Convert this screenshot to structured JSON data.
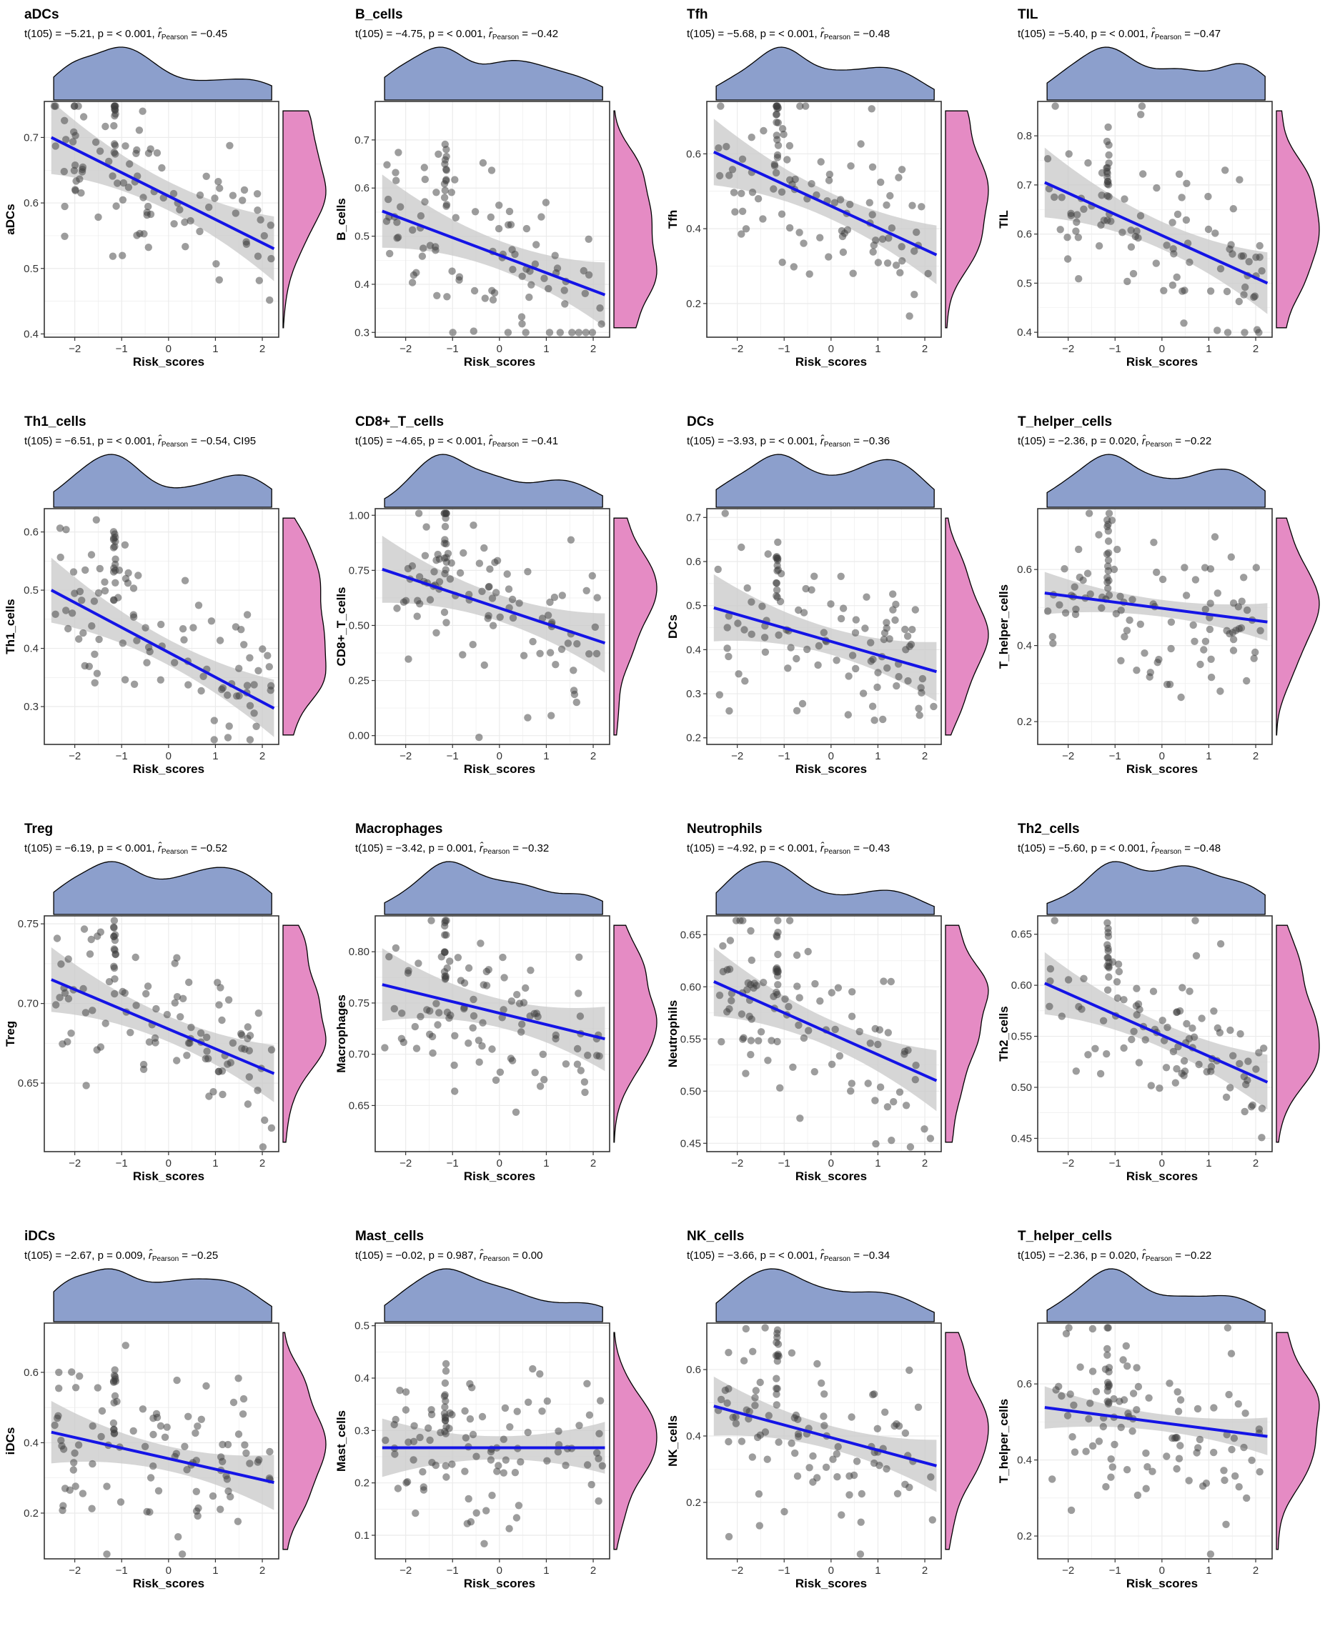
{
  "figure": {
    "columns": 4,
    "colors": {
      "top_density_fill": "#8c9fcc",
      "right_density_fill": "#e58bc4",
      "fit_line": "#1414e6",
      "confidence_band": "#c8c8c8",
      "point": "#3c3c3c",
      "grid": "#ebebeb"
    }
  },
  "chart_data": [
    {
      "type": "scatter",
      "title": "aDCs",
      "stat": {
        "t": "t(105) = −5.21, ",
        "p": "p = < 0.001, ",
        "r_label": "r̂",
        "r_sub": "Pearson",
        "r_val": " = −0.45",
        "extra": ""
      },
      "xlabel": "Risk_scores",
      "ylabel": "aDCs",
      "xlim": [
        -2.65,
        2.35
      ],
      "ylim": [
        0.395,
        0.755
      ],
      "xticks": [
        -2,
        -1,
        0,
        1,
        2
      ],
      "yticks": [
        0.4,
        0.5,
        0.6,
        0.7
      ],
      "fit": {
        "x": [
          -2.5,
          2.25
        ],
        "y": [
          0.7,
          0.53
        ]
      },
      "ci": 0.022,
      "seed": 11
    },
    {
      "type": "scatter",
      "title": "B_cells",
      "stat": {
        "t": "t(105) = −4.75, ",
        "p": "p = < 0.001, ",
        "r_label": "r̂",
        "r_sub": "Pearson",
        "r_val": " = −0.42",
        "extra": ""
      },
      "xlabel": "Risk_scores",
      "ylabel": "B_cells",
      "xlim": [
        -2.65,
        2.35
      ],
      "ylim": [
        0.29,
        0.78
      ],
      "xticks": [
        -2,
        -1,
        0,
        1,
        2
      ],
      "yticks": [
        0.3,
        0.4,
        0.5,
        0.6,
        0.7
      ],
      "fit": {
        "x": [
          -2.5,
          2.25
        ],
        "y": [
          0.552,
          0.378
        ]
      },
      "ci": 0.03,
      "seed": 23
    },
    {
      "type": "scatter",
      "title": "Tfh",
      "stat": {
        "t": "t(105) = −5.68, ",
        "p": "p = < 0.001, ",
        "r_label": "r̂",
        "r_sub": "Pearson",
        "r_val": " = −0.48",
        "extra": ""
      },
      "xlabel": "Risk_scores",
      "ylabel": "Tfh",
      "xlim": [
        -2.65,
        2.35
      ],
      "ylim": [
        0.11,
        0.74
      ],
      "xticks": [
        -2,
        -1,
        0,
        1,
        2
      ],
      "yticks": [
        0.2,
        0.4,
        0.6
      ],
      "fit": {
        "x": [
          -2.5,
          2.25
        ],
        "y": [
          0.605,
          0.33
        ]
      },
      "ci": 0.035,
      "seed": 37
    },
    {
      "type": "scatter",
      "title": "TIL",
      "stat": {
        "t": "t(105) = −5.40, ",
        "p": "p = < 0.001, ",
        "r_label": "r̂",
        "r_sub": "Pearson",
        "r_val": " = −0.47",
        "extra": ""
      },
      "xlabel": "Risk_scores",
      "ylabel": "TIL",
      "xlim": [
        -2.65,
        2.35
      ],
      "ylim": [
        0.39,
        0.87
      ],
      "xticks": [
        -2,
        -1,
        0,
        1,
        2
      ],
      "yticks": [
        0.4,
        0.5,
        0.6,
        0.7,
        0.8
      ],
      "fit": {
        "x": [
          -2.5,
          2.25
        ],
        "y": [
          0.705,
          0.5
        ]
      },
      "ci": 0.028,
      "seed": 41
    },
    {
      "type": "scatter",
      "title": "Th1_cells",
      "stat": {
        "t": "t(105) = −6.51, ",
        "p": "p = < 0.001, ",
        "r_label": "r̂",
        "r_sub": "Pearson",
        "r_val": " = −0.54, ",
        "extra": "CI95"
      },
      "xlabel": "Risk_scores",
      "ylabel": "Th1_cells",
      "xlim": [
        -2.65,
        2.35
      ],
      "ylim": [
        0.235,
        0.64
      ],
      "xticks": [
        -2,
        -1,
        0,
        1,
        2
      ],
      "yticks": [
        0.3,
        0.4,
        0.5,
        0.6
      ],
      "fit": {
        "x": [
          -2.5,
          2.25
        ],
        "y": [
          0.5,
          0.297
        ]
      },
      "ci": 0.022,
      "seed": 53
    },
    {
      "type": "scatter",
      "title": "CD8+_T_cells",
      "stat": {
        "t": "t(105) = −4.65, ",
        "p": "p = < 0.001, ",
        "r_label": "r̂",
        "r_sub": "Pearson",
        "r_val": " = −0.41",
        "extra": ""
      },
      "xlabel": "Risk_scores",
      "ylabel": "CD8+_T_cells",
      "xlim": [
        -2.65,
        2.35
      ],
      "ylim": [
        -0.04,
        1.03
      ],
      "xticks": [
        -2,
        -1,
        0,
        1,
        2
      ],
      "yticks": [
        0.0,
        0.25,
        0.5,
        0.75,
        1.0
      ],
      "fit": {
        "x": [
          -2.5,
          2.25
        ],
        "y": [
          0.755,
          0.42
        ]
      },
      "ci": 0.06,
      "seed": 61
    },
    {
      "type": "scatter",
      "title": "DCs",
      "stat": {
        "t": "t(105) = −3.93, ",
        "p": "p = < 0.001, ",
        "r_label": "r̂",
        "r_sub": "Pearson",
        "r_val": " = −0.36",
        "extra": ""
      },
      "xlabel": "Risk_scores",
      "ylabel": "DCs",
      "xlim": [
        -2.65,
        2.35
      ],
      "ylim": [
        0.185,
        0.72
      ],
      "xticks": [
        -2,
        -1,
        0,
        1,
        2
      ],
      "yticks": [
        0.2,
        0.3,
        0.4,
        0.5,
        0.6,
        0.7
      ],
      "fit": {
        "x": [
          -2.5,
          2.25
        ],
        "y": [
          0.495,
          0.35
        ]
      },
      "ci": 0.03,
      "seed": 71
    },
    {
      "type": "scatter",
      "title": "T_helper_cells",
      "stat": {
        "t": "t(105) = −2.36, ",
        "p": "p = 0.020, ",
        "r_label": "r̂",
        "r_sub": "Pearson",
        "r_val": " = −0.22",
        "extra": ""
      },
      "xlabel": "Risk_scores",
      "ylabel": "T_helper_cells",
      "xlim": [
        -2.65,
        2.35
      ],
      "ylim": [
        0.14,
        0.76
      ],
      "xticks": [
        -2,
        -1,
        0,
        1,
        2
      ],
      "yticks": [
        0.2,
        0.4,
        0.6
      ],
      "fit": {
        "x": [
          -2.5,
          2.25
        ],
        "y": [
          0.538,
          0.462
        ]
      },
      "ci": 0.022,
      "seed": 83
    },
    {
      "type": "scatter",
      "title": "Treg",
      "stat": {
        "t": "t(105) = −6.19, ",
        "p": "p = < 0.001, ",
        "r_label": "r̂",
        "r_sub": "Pearson",
        "r_val": " = −0.52",
        "extra": ""
      },
      "xlabel": "Risk_scores",
      "ylabel": "Treg",
      "xlim": [
        -2.65,
        2.35
      ],
      "ylim": [
        0.607,
        0.755
      ],
      "xticks": [
        -2,
        -1,
        0,
        1,
        2
      ],
      "yticks": [
        0.65,
        0.7,
        0.75
      ],
      "fit": {
        "x": [
          -2.5,
          2.25
        ],
        "y": [
          0.715,
          0.656
        ]
      },
      "ci": 0.008,
      "seed": 97
    },
    {
      "type": "scatter",
      "title": "Macrophages",
      "stat": {
        "t": "t(105) = −3.42, ",
        "p": "p = 0.001, ",
        "r_label": "r̂",
        "r_sub": "Pearson",
        "r_val": " = −0.32",
        "extra": ""
      },
      "xlabel": "Risk_scores",
      "ylabel": "Macrophages",
      "xlim": [
        -2.65,
        2.35
      ],
      "ylim": [
        0.605,
        0.835
      ],
      "xticks": [
        -2,
        -1,
        0,
        1,
        2
      ],
      "yticks": [
        0.65,
        0.7,
        0.75,
        0.8
      ],
      "fit": {
        "x": [
          -2.5,
          2.25
        ],
        "y": [
          0.768,
          0.715
        ]
      },
      "ci": 0.014,
      "seed": 101
    },
    {
      "type": "scatter",
      "title": "Neutrophils",
      "stat": {
        "t": "t(105) = −4.92, ",
        "p": "p = < 0.001, ",
        "r_label": "r̂",
        "r_sub": "Pearson",
        "r_val": " = −0.43",
        "extra": ""
      },
      "xlabel": "Risk_scores",
      "ylabel": "Neutrophils",
      "xlim": [
        -2.65,
        2.35
      ],
      "ylim": [
        0.442,
        0.668
      ],
      "xticks": [
        -2,
        -1,
        0,
        1,
        2
      ],
      "yticks": [
        0.45,
        0.5,
        0.55,
        0.6,
        0.65
      ],
      "fit": {
        "x": [
          -2.5,
          2.25
        ],
        "y": [
          0.605,
          0.51
        ]
      },
      "ci": 0.013,
      "seed": 113
    },
    {
      "type": "scatter",
      "title": "Th2_cells",
      "stat": {
        "t": "t(105) = −5.60, ",
        "p": "p = < 0.001, ",
        "r_label": "r̂",
        "r_sub": "Pearson",
        "r_val": " = −0.48",
        "extra": ""
      },
      "xlabel": "Risk_scores",
      "ylabel": "Th2_cells",
      "xlim": [
        -2.65,
        2.35
      ],
      "ylim": [
        0.437,
        0.668
      ],
      "xticks": [
        -2,
        -1,
        0,
        1,
        2
      ],
      "yticks": [
        0.45,
        0.5,
        0.55,
        0.6,
        0.65
      ],
      "fit": {
        "x": [
          -2.5,
          2.25
        ],
        "y": [
          0.602,
          0.505
        ]
      },
      "ci": 0.012,
      "seed": 127
    },
    {
      "type": "scatter",
      "title": "iDCs",
      "stat": {
        "t": "t(105) = −2.67, ",
        "p": "p = 0.009, ",
        "r_label": "r̂",
        "r_sub": "Pearson",
        "r_val": " = −0.25",
        "extra": ""
      },
      "xlabel": "Risk_scores",
      "ylabel": "iDCs",
      "xlim": [
        -2.65,
        2.35
      ],
      "ylim": [
        0.07,
        0.74
      ],
      "xticks": [
        -2,
        -1,
        0,
        1,
        2
      ],
      "yticks": [
        0.2,
        0.4,
        0.6
      ],
      "fit": {
        "x": [
          -2.5,
          2.25
        ],
        "y": [
          0.43,
          0.287
        ]
      },
      "ci": 0.035,
      "seed": 131
    },
    {
      "type": "scatter",
      "title": "Mast_cells",
      "stat": {
        "t": "t(105) = −0.02, ",
        "p": "p = 0.987, ",
        "r_label": "r̂",
        "r_sub": "Pearson",
        "r_val": " = 0.00",
        "extra": ""
      },
      "xlabel": "Risk_scores",
      "ylabel": "Mast_cells",
      "xlim": [
        -2.65,
        2.35
      ],
      "ylim": [
        0.055,
        0.505
      ],
      "xticks": [
        -2,
        -1,
        0,
        1,
        2
      ],
      "yticks": [
        0.1,
        0.2,
        0.3,
        0.4,
        0.5
      ],
      "fit": {
        "x": [
          -2.5,
          2.25
        ],
        "y": [
          0.267,
          0.267
        ]
      },
      "ci": 0.022,
      "seed": 139
    },
    {
      "type": "scatter",
      "title": "NK_cells",
      "stat": {
        "t": "t(105) = −3.66, ",
        "p": "p = < 0.001, ",
        "r_label": "r̂",
        "r_sub": "Pearson",
        "r_val": " = −0.34",
        "extra": ""
      },
      "xlabel": "Risk_scores",
      "ylabel": "NK_cells",
      "xlim": [
        -2.65,
        2.35
      ],
      "ylim": [
        0.03,
        0.74
      ],
      "xticks": [
        -2,
        -1,
        0,
        1,
        2
      ],
      "yticks": [
        0.2,
        0.4,
        0.6
      ],
      "fit": {
        "x": [
          -2.5,
          2.25
        ],
        "y": [
          0.49,
          0.31
        ]
      },
      "ci": 0.035,
      "seed": 149
    },
    {
      "type": "scatter",
      "title": "T_helper_cells",
      "stat": {
        "t": "t(105) = −2.36, ",
        "p": "p = 0.020, ",
        "r_label": "r̂",
        "r_sub": "Pearson",
        "r_val": " = −0.22",
        "extra": ""
      },
      "xlabel": "Risk_scores",
      "ylabel": "T_helper_cells",
      "xlim": [
        -2.65,
        2.35
      ],
      "ylim": [
        0.14,
        0.76
      ],
      "xticks": [
        -2,
        -1,
        0,
        1,
        2
      ],
      "yticks": [
        0.2,
        0.4,
        0.6
      ],
      "fit": {
        "x": [
          -2.5,
          2.25
        ],
        "y": [
          0.538,
          0.462
        ]
      },
      "ci": 0.022,
      "seed": 157
    }
  ]
}
